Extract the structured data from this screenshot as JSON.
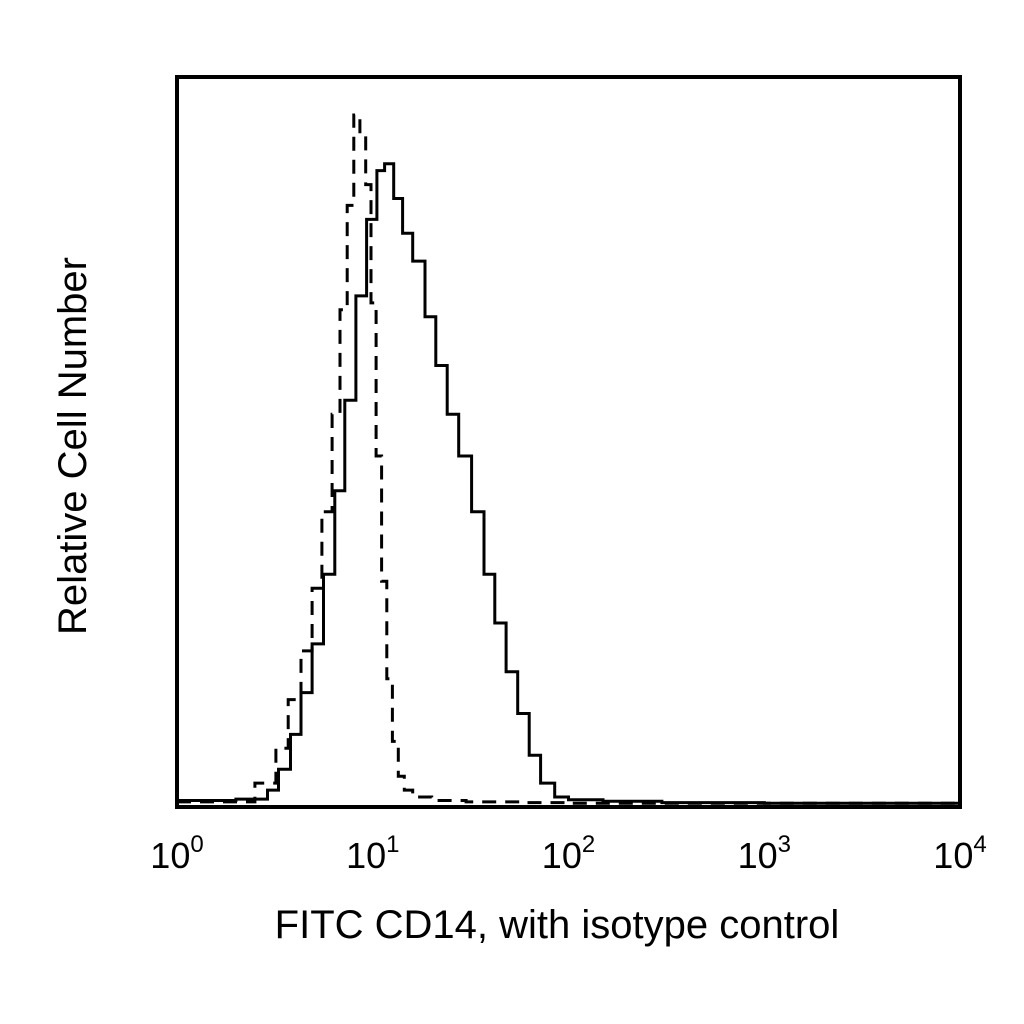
{
  "chart_data": {
    "type": "line",
    "title": "",
    "xlabel": "FITC CD14, with isotype control",
    "ylabel": "Relative Cell Number",
    "x_scale": "log",
    "xlim": [
      1,
      10000
    ],
    "ylim": [
      0,
      100
    ],
    "grid": false,
    "legend": "none",
    "x_ticks": [
      {
        "base": "10",
        "exp": "0",
        "value": 1
      },
      {
        "base": "10",
        "exp": "1",
        "value": 10
      },
      {
        "base": "10",
        "exp": "2",
        "value": 100
      },
      {
        "base": "10",
        "exp": "3",
        "value": 1000
      },
      {
        "base": "10",
        "exp": "4",
        "value": 10000
      }
    ],
    "series": [
      {
        "style": "solid",
        "color": "#000000",
        "x": [
          1,
          2,
          2.9,
          3.3,
          3.8,
          4.3,
          4.9,
          5.6,
          6.4,
          7.2,
          8.2,
          9.3,
          10.5,
          11.5,
          12.8,
          14.2,
          16,
          18.5,
          21,
          24,
          27.5,
          32,
          37,
          42,
          48,
          55,
          63,
          72,
          85,
          100,
          150,
          300,
          1000,
          10000
        ],
        "y": [
          0.5,
          0.7,
          2,
          5,
          10,
          16,
          23,
          33,
          45,
          58,
          73,
          84,
          91,
          92,
          87,
          82,
          78,
          70,
          63,
          56,
          50,
          42,
          33,
          26,
          19,
          13,
          7,
          3,
          1,
          0.6,
          0.4,
          0.2,
          0.1,
          0.1
        ]
      },
      {
        "style": "dashed",
        "color": "#000000",
        "x": [
          1,
          2.5,
          3.2,
          3.7,
          4.3,
          4.9,
          5.5,
          6.2,
          6.8,
          7.4,
          8,
          8.6,
          9.2,
          9.8,
          10.4,
          11.1,
          11.8,
          12.6,
          13.5,
          14.5,
          16,
          20,
          30,
          60,
          100,
          10000
        ],
        "y": [
          0.3,
          3,
          8,
          15,
          22,
          31,
          42,
          56,
          71,
          86,
          99,
          96,
          89,
          72,
          50,
          32,
          18,
          9,
          4,
          2,
          1,
          0.5,
          0.3,
          0.2,
          0.1,
          0.1
        ]
      }
    ]
  }
}
